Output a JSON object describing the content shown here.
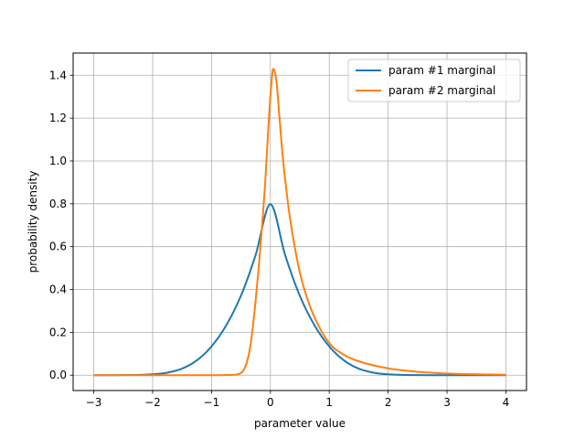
{
  "chart_data": {
    "type": "line",
    "xlabel": "parameter value",
    "ylabel": "probability density",
    "xlim": [
      -3.35,
      4.35
    ],
    "ylim": [
      -0.0716,
      1.5036
    ],
    "xticks": [
      -3,
      -2,
      -1,
      0,
      1,
      2,
      3,
      4
    ],
    "xtick_labels": [
      "−3",
      "−2",
      "−1",
      "0",
      "1",
      "2",
      "3",
      "4"
    ],
    "yticks": [
      0.0,
      0.2,
      0.4,
      0.6,
      0.8,
      1.0,
      1.2,
      1.4
    ],
    "ytick_labels": [
      "0.0",
      "0.2",
      "0.4",
      "0.6",
      "0.8",
      "1.0",
      "1.2",
      "1.4"
    ],
    "grid": true,
    "legend_position": "top-right",
    "series": [
      {
        "name": "param #1 marginal",
        "color": "#1f77b4",
        "x": [
          -3.0,
          -2.5,
          -2.0,
          -1.75,
          -1.5,
          -1.25,
          -1.0,
          -0.75,
          -0.5,
          -0.25,
          0.0,
          0.25,
          0.5,
          0.75,
          1.0,
          1.25,
          1.5,
          1.75,
          2.0,
          2.5,
          3.0,
          3.5,
          4.0
        ],
        "y": [
          0.0,
          0.0002,
          0.004,
          0.0118,
          0.0304,
          0.0688,
          0.1343,
          0.2325,
          0.3706,
          0.5616,
          0.798,
          0.5616,
          0.3706,
          0.2325,
          0.1343,
          0.0688,
          0.0304,
          0.0118,
          0.004,
          0.0002,
          0.0,
          0.0,
          0.0
        ]
      },
      {
        "name": "param #2 marginal",
        "color": "#ff7f0e",
        "x": [
          -3.0,
          -1.0,
          -0.6,
          -0.5,
          -0.45,
          -0.4,
          -0.35,
          -0.3,
          -0.2,
          -0.1,
          0.0,
          0.05,
          0.1,
          0.15,
          0.2,
          0.3,
          0.4,
          0.5,
          0.6,
          0.75,
          1.0,
          1.25,
          1.5,
          2.0,
          2.5,
          3.0,
          3.5,
          4.0
        ],
        "y": [
          0.0,
          0.0,
          0.002,
          0.01,
          0.025,
          0.06,
          0.12,
          0.22,
          0.5,
          0.85,
          1.3,
          1.43,
          1.38,
          1.22,
          1.05,
          0.8,
          0.62,
          0.48,
          0.38,
          0.27,
          0.15,
          0.095,
          0.065,
          0.032,
          0.016,
          0.008,
          0.004,
          0.002
        ]
      }
    ]
  }
}
